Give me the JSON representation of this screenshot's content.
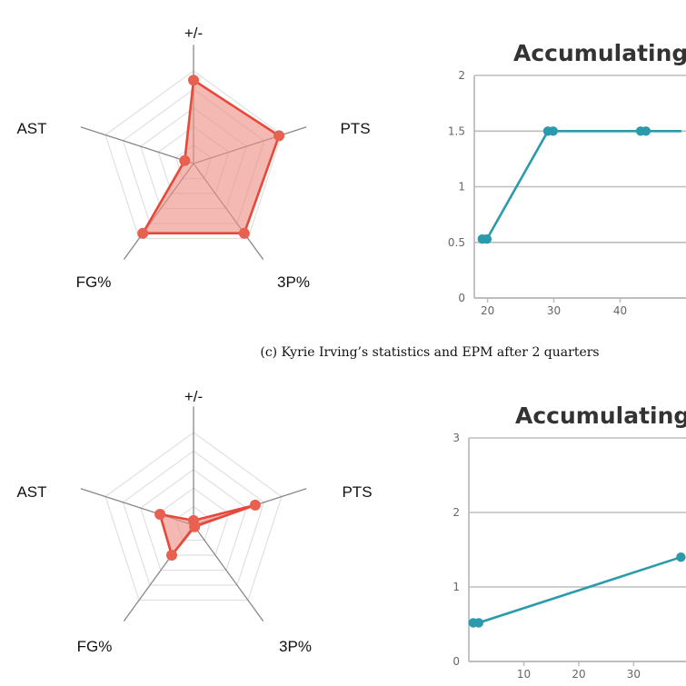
{
  "caption": "(c) Kyrie Irving’s statistics and EPM after 2 quarters",
  "colors": {
    "radar_line": "#e8483a",
    "radar_fill": "#ee8e84",
    "radar_marker": "#e8604f",
    "line_series": "#2b9aad",
    "grid": "#e0e0e0",
    "spoke": "#888888",
    "line_grid": "#bdbdbd"
  },
  "chart_data": [
    {
      "type": "radar",
      "axes": [
        "+/-",
        "PTS",
        "3P%",
        "FG%",
        "AST"
      ],
      "rmax": 1,
      "rings": 5,
      "values": [
        0.9,
        0.97,
        0.93,
        0.93,
        0.1
      ]
    },
    {
      "type": "line",
      "title": "Accumulating M",
      "xlim": [
        18,
        52
      ],
      "xticks": [
        20,
        30,
        40
      ],
      "ylim": [
        0,
        2
      ],
      "yticks": [
        0,
        0.5,
        1,
        1.5,
        2
      ],
      "ytick_labels": [
        "0",
        "0.5",
        "1",
        "1.5",
        "2"
      ],
      "points": [
        {
          "x": 19.2,
          "y": 0.53
        },
        {
          "x": 19.9,
          "y": 0.53
        },
        {
          "x": 29.1,
          "y": 1.5
        },
        {
          "x": 29.9,
          "y": 1.5
        },
        {
          "x": 43.1,
          "y": 1.5
        },
        {
          "x": 43.9,
          "y": 1.5
        },
        {
          "x": 52,
          "y": 1.5
        }
      ]
    },
    {
      "type": "radar",
      "axes": [
        "+/-",
        "PTS",
        "3P%",
        "FG%",
        "AST"
      ],
      "rmax": 1,
      "rings": 5,
      "values": [
        0.05,
        0.7,
        0.02,
        0.4,
        0.38
      ]
    },
    {
      "type": "line",
      "title": "Accumulating M",
      "xlim": [
        0,
        42
      ],
      "xticks": [
        10,
        20,
        30
      ],
      "ylim": [
        0,
        3
      ],
      "yticks": [
        0,
        1,
        2,
        3
      ],
      "ytick_labels": [
        "0",
        "1",
        "2",
        "3"
      ],
      "points": [
        {
          "x": 0.8,
          "y": 0.52
        },
        {
          "x": 1.8,
          "y": 0.52
        },
        {
          "x": 38.6,
          "y": 1.4
        },
        {
          "x": 42,
          "y": 1.46
        }
      ]
    }
  ]
}
